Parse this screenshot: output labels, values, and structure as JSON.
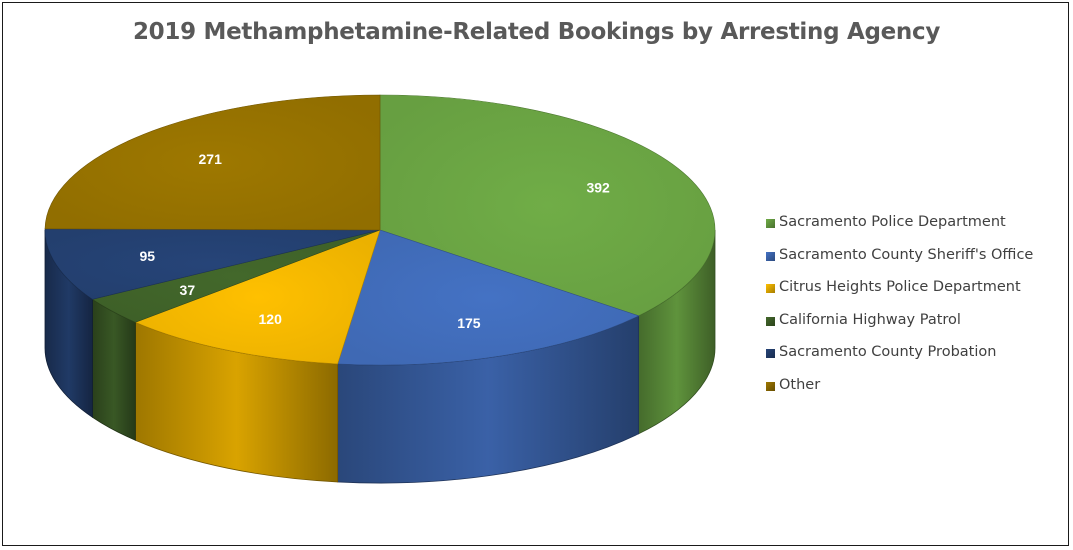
{
  "chart_data": {
    "type": "pie",
    "title": "2019 Methamphetamine-Related Bookings by Arresting Agency",
    "legend_position": "right",
    "slices": [
      {
        "label": "Sacramento Police Department",
        "value": 392,
        "color": "#70ad47"
      },
      {
        "label": "Sacramento County Sheriff's Office",
        "value": 175,
        "color": "#4472c4"
      },
      {
        "label": "Citrus Heights Police Department",
        "value": 120,
        "color": "#ffc000"
      },
      {
        "label": "California Highway Patrol",
        "value": 37,
        "color": "#43682b"
      },
      {
        "label": "Sacramento County Probation",
        "value": 95,
        "color": "#264478"
      },
      {
        "label": "Other",
        "value": 271,
        "color": "#9e7800"
      }
    ]
  }
}
